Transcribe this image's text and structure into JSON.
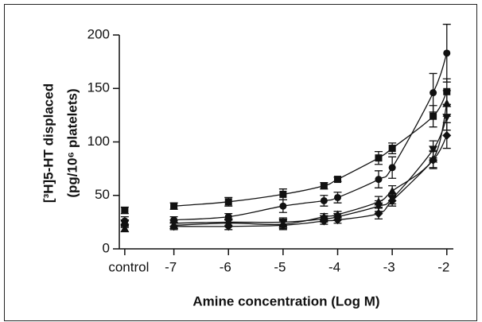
{
  "chart_data": {
    "type": "scatter",
    "x_label": "Amine concentration (Log M)",
    "y_label": [
      "[³H]5-HT displaced",
      "(pg/10⁶ platelets)"
    ],
    "x": [
      -7.9,
      -7,
      -6,
      -5,
      -4.25,
      -4,
      -3.25,
      -3,
      -2.25,
      -2
    ],
    "xlim": [
      -8,
      -1.88
    ],
    "xticks": [
      {
        "value": -7.9,
        "label": "control"
      },
      -7,
      -6,
      -5,
      -4,
      -3,
      -2
    ],
    "ylim": [
      0,
      200
    ],
    "yticks": [
      0,
      50,
      100,
      150,
      200
    ],
    "series": [
      {
        "marker": "square",
        "color": "#111111",
        "values": [
          36,
          40,
          44,
          51,
          59,
          65,
          85,
          94,
          124,
          147
        ],
        "errors": [
          3,
          3,
          4,
          5,
          3,
          2,
          6,
          5,
          10,
          12
        ]
      },
      {
        "marker": "circle",
        "color": "#111111",
        "values": [
          26,
          27,
          30,
          40,
          45,
          48,
          65,
          76,
          146,
          183
        ],
        "errors": [
          4,
          3,
          3,
          6,
          5,
          5,
          8,
          10,
          18,
          27
        ]
      },
      {
        "marker": "triangle-up",
        "color": "#111111",
        "values": [
          19,
          22,
          24,
          23,
          30,
          32,
          44,
          54,
          84,
          136
        ],
        "errors": [
          3,
          3,
          3,
          4,
          3,
          3,
          5,
          5,
          8,
          12
        ]
      },
      {
        "marker": "triangle-down",
        "color": "#111111",
        "values": [
          24,
          24,
          25,
          25,
          28,
          30,
          40,
          47,
          93,
          123
        ],
        "errors": [
          3,
          3,
          3,
          4,
          3,
          3,
          5,
          5,
          8,
          12
        ]
      },
      {
        "marker": "diamond",
        "color": "#111111",
        "values": [
          23,
          21,
          21,
          22,
          26,
          27,
          33,
          45,
          83,
          106
        ],
        "errors": [
          3,
          3,
          3,
          4,
          3,
          3,
          5,
          5,
          8,
          12
        ]
      }
    ]
  }
}
